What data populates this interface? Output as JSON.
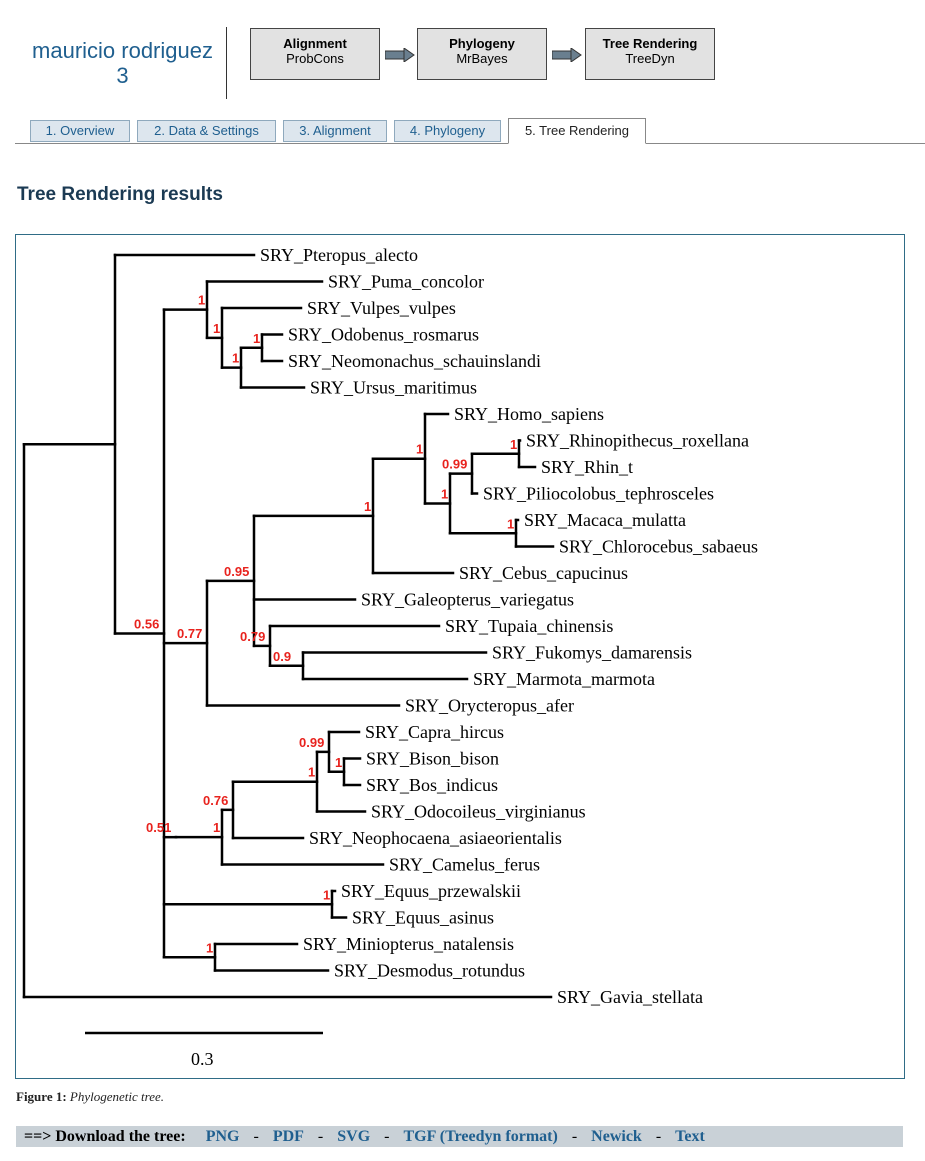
{
  "header": {
    "user_line1": "mauricio rodriguez",
    "user_line2": "3",
    "steps": [
      {
        "title": "Alignment",
        "tool": "ProbCons"
      },
      {
        "title": "Phylogeny",
        "tool": "MrBayes"
      },
      {
        "title": "Tree Rendering",
        "tool": "TreeDyn"
      }
    ]
  },
  "tabs": [
    {
      "label": "1. Overview"
    },
    {
      "label": "2. Data & Settings"
    },
    {
      "label": "3. Alignment"
    },
    {
      "label": "4. Phylogeny"
    },
    {
      "label": "5. Tree Rendering",
      "active": true
    }
  ],
  "main": {
    "heading": "Tree Rendering results"
  },
  "tree": {
    "leaves": [
      "SRY_Pteropus_alecto",
      "SRY_Puma_concolor",
      "SRY_Vulpes_vulpes",
      "SRY_Odobenus_rosmarus",
      "SRY_Neomonachus_schauinslandi",
      "SRY_Ursus_maritimus",
      "SRY_Homo_sapiens",
      "SRY_Rhinopithecus_roxellana",
      "SRY_Rhin_t",
      "SRY_Piliocolobus_tephrosceles",
      "SRY_Macaca_mulatta",
      "SRY_Chlorocebus_sabaeus",
      "SRY_Cebus_capucinus",
      "SRY_Galeopterus_variegatus",
      "SRY_Tupaia_chinensis",
      "SRY_Fukomys_damarensis",
      "SRY_Marmota_marmota",
      "SRY_Orycteropus_afer",
      "SRY_Capra_hircus",
      "SRY_Bison_bison",
      "SRY_Bos_indicus",
      "SRY_Odocoileus_virginianus",
      "SRY_Neophocaena_asiaeorientalis",
      "SRY_Camelus_ferus",
      "SRY_Equus_przewalskii",
      "SRY_Equus_asinus",
      "SRY_Miniopterus_natalensis",
      "SRY_Desmodus_rotundus",
      "SRY_Gavia_stellata"
    ],
    "supports": [
      "1",
      "1",
      "1",
      "1",
      "1",
      "1",
      "0.99",
      "1",
      "1",
      "0.95",
      "0.79",
      "0.9",
      "0.77",
      "0.51",
      "0.99",
      "1",
      "1",
      "0.76",
      "1",
      "0.56",
      "1",
      "1"
    ],
    "scale_label": "0.3"
  },
  "figure": {
    "caption_label": "Figure 1:",
    "caption_text": "Phylogenetic tree."
  },
  "download": {
    "lead": "==> Download the tree:",
    "links": [
      "PNG",
      "PDF",
      "SVG",
      "TGF (Treedyn format)",
      "Newick",
      "Text"
    ]
  },
  "colors": {
    "accent": "#1f5f8f",
    "support_values": "#e8231e",
    "tab_bg": "#dde6ee",
    "download_bar": "#c9d1d7"
  }
}
